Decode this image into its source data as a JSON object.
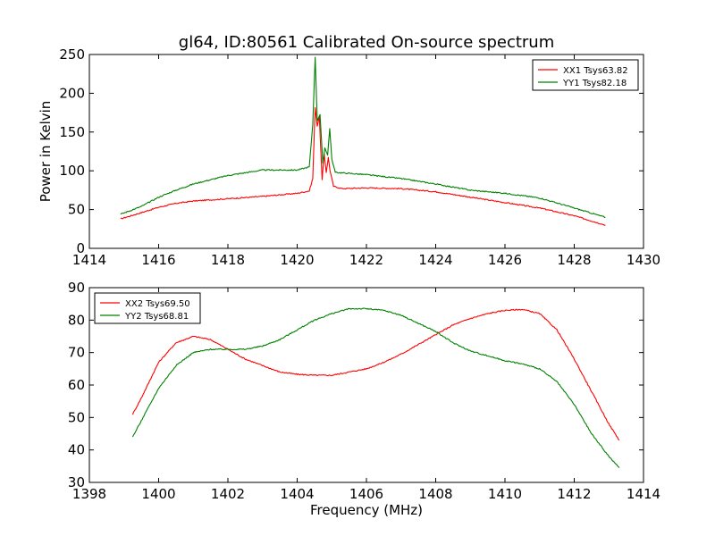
{
  "title": "gl64, ID:80561 Calibrated On-source spectrum",
  "chart_data": [
    {
      "type": "line",
      "ylabel": "Power in Kelvin",
      "xlabel": "",
      "xlim": [
        1414,
        1430
      ],
      "ylim": [
        0,
        250
      ],
      "x_ticks": [
        1414,
        1416,
        1418,
        1420,
        1422,
        1424,
        1426,
        1428,
        1430
      ],
      "y_ticks": [
        0,
        50,
        100,
        150,
        200,
        250
      ],
      "grid": false,
      "legend_position": "top-right",
      "series": [
        {
          "name": "XX1 Tsys63.82",
          "color": "#ff0000",
          "x": [
            1414.9,
            1415.5,
            1416.0,
            1416.5,
            1417.0,
            1418.0,
            1419.0,
            1420.0,
            1420.35,
            1420.45,
            1420.52,
            1420.58,
            1420.64,
            1420.72,
            1420.78,
            1420.84,
            1420.9,
            1420.95,
            1421.05,
            1421.3,
            1422.0,
            1423.0,
            1424.0,
            1425.0,
            1426.0,
            1427.0,
            1428.0,
            1428.9
          ],
          "y": [
            38,
            46,
            53,
            58,
            61,
            64,
            67,
            71,
            74,
            90,
            182,
            158,
            170,
            88,
            122,
            98,
            117,
            100,
            80,
            77,
            78,
            77,
            73,
            66,
            59,
            52,
            42,
            30
          ]
        },
        {
          "name": "YY1 Tsys82.18",
          "color": "#008000",
          "x": [
            1414.9,
            1415.5,
            1416.0,
            1416.5,
            1417.0,
            1418.0,
            1419.0,
            1420.0,
            1420.35,
            1420.45,
            1420.52,
            1420.58,
            1420.66,
            1420.74,
            1420.8,
            1420.88,
            1420.94,
            1421.0,
            1421.1,
            1422.0,
            1423.0,
            1424.0,
            1425.0,
            1426.0,
            1427.0,
            1428.0,
            1428.9
          ],
          "y": [
            44,
            54,
            66,
            75,
            83,
            94,
            101,
            101,
            105,
            160,
            247,
            165,
            172,
            110,
            130,
            120,
            155,
            115,
            98,
            95,
            90,
            83,
            75,
            71,
            65,
            52,
            40
          ]
        }
      ]
    },
    {
      "type": "line",
      "xlabel": "Frequency (MHz)",
      "ylabel": "",
      "xlim": [
        1398,
        1414
      ],
      "ylim": [
        30,
        90
      ],
      "x_ticks": [
        1398,
        1400,
        1402,
        1404,
        1406,
        1408,
        1410,
        1412,
        1414
      ],
      "y_ticks": [
        30,
        40,
        50,
        60,
        70,
        80,
        90
      ],
      "grid": false,
      "legend_position": "top-left",
      "series": [
        {
          "name": "XX2 Tsys69.50",
          "color": "#ff0000",
          "x": [
            1399.25,
            1399.5,
            1400.0,
            1400.5,
            1401.0,
            1401.5,
            1402.0,
            1402.5,
            1403.0,
            1403.5,
            1404.0,
            1404.5,
            1405.0,
            1405.5,
            1406.0,
            1406.5,
            1407.0,
            1407.5,
            1408.0,
            1408.5,
            1409.0,
            1409.5,
            1410.0,
            1410.5,
            1411.0,
            1411.5,
            1412.0,
            1412.5,
            1413.0,
            1413.3
          ],
          "y": [
            51,
            56,
            67,
            73,
            75,
            74,
            71,
            68,
            66,
            64,
            63.3,
            63,
            63,
            64,
            65,
            67,
            69.5,
            72.5,
            75.5,
            78.5,
            80.5,
            82,
            83,
            83.3,
            82,
            77,
            68,
            58,
            48,
            43
          ]
        },
        {
          "name": "YY2 Tsys68.81",
          "color": "#008000",
          "x": [
            1399.25,
            1399.5,
            1400.0,
            1400.5,
            1401.0,
            1401.5,
            1402.0,
            1402.5,
            1403.0,
            1403.5,
            1404.0,
            1404.5,
            1405.0,
            1405.5,
            1406.0,
            1406.5,
            1407.0,
            1407.5,
            1408.0,
            1408.5,
            1409.0,
            1409.5,
            1410.0,
            1410.5,
            1411.0,
            1411.5,
            1412.0,
            1412.5,
            1413.0,
            1413.3
          ],
          "y": [
            44,
            49,
            59,
            66,
            70,
            71,
            71,
            71,
            72,
            74,
            77,
            80,
            82,
            83.5,
            83.5,
            83,
            81.5,
            79,
            76.5,
            73,
            70.5,
            69,
            67.5,
            66.5,
            65,
            61,
            54,
            45,
            38,
            34.5
          ]
        }
      ]
    }
  ]
}
